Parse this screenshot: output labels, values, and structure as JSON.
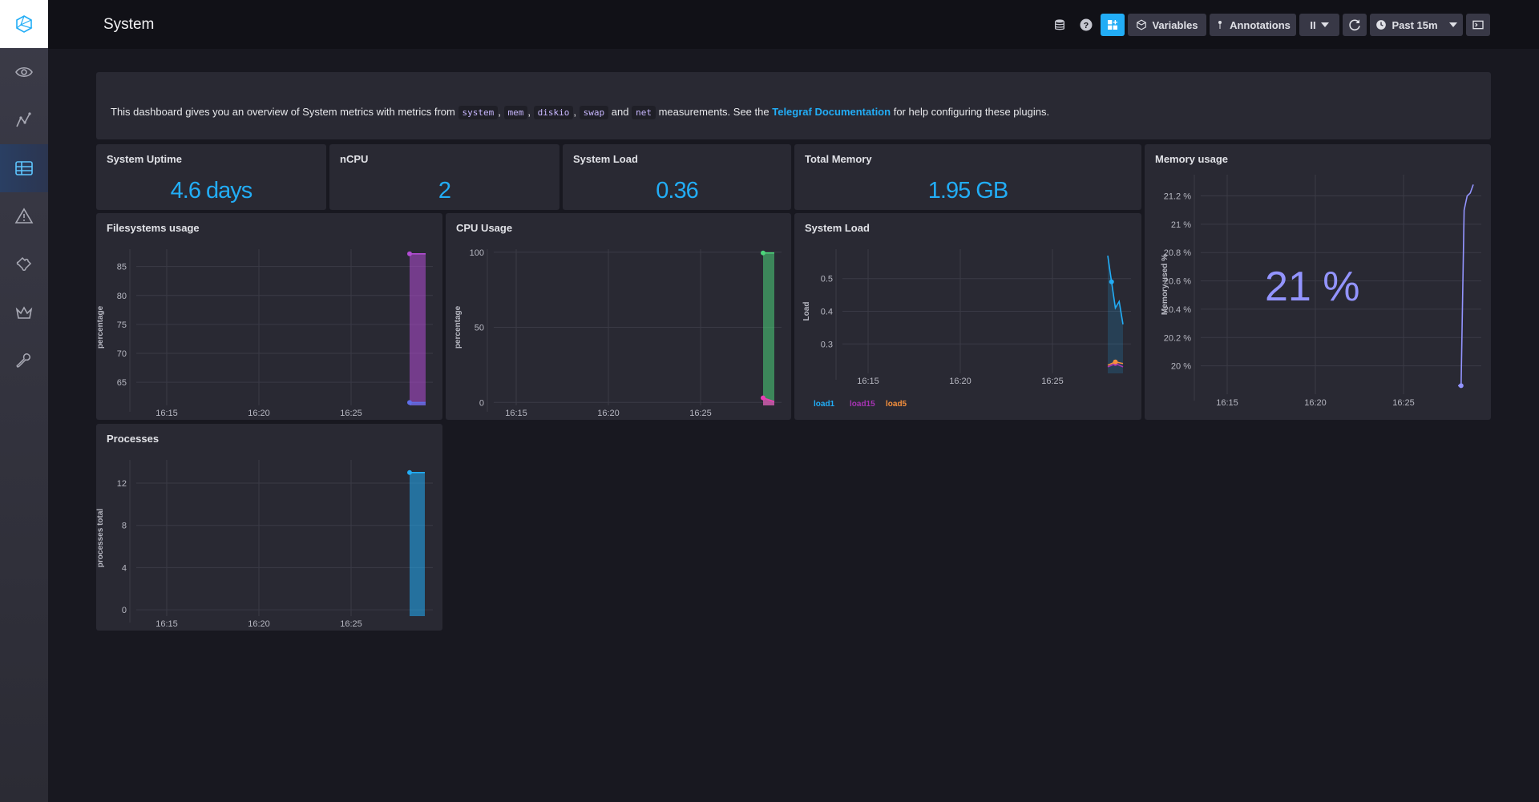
{
  "header": {
    "title": "System",
    "variables_label": "Variables",
    "annotations_label": "Annotations",
    "pause_label": "II",
    "time_range_label": "Past 15m"
  },
  "sidebar": {
    "items": [
      {
        "icon": "eye-icon"
      },
      {
        "icon": "graph-icon"
      },
      {
        "icon": "dashboards-icon",
        "active": true
      },
      {
        "icon": "alert-icon"
      },
      {
        "icon": "puzzle-icon"
      },
      {
        "icon": "crown-icon"
      },
      {
        "icon": "wrench-icon"
      }
    ]
  },
  "description": {
    "text_before": "This dashboard gives you an overview of System metrics with metrics from",
    "m1": "system",
    "sep1": ",",
    "m2": "mem",
    "sep2": ",",
    "m3": "diskio",
    "sep3": ",",
    "m4": "swap",
    "and": "and",
    "m5": "net",
    "text_mid": "measurements. See the",
    "link": "Telegraf Documentation",
    "text_after": "for help configuring these plugins."
  },
  "stats": {
    "uptime": {
      "title": "System Uptime",
      "value": "4.6 days"
    },
    "ncpu": {
      "title": "nCPU",
      "value": "2"
    },
    "load": {
      "title": "System Load",
      "value": "0.36"
    },
    "memory": {
      "title": "Total Memory",
      "value": "1.95 GB"
    }
  },
  "panels": {
    "filesystems": {
      "title": "Filesystems usage"
    },
    "cpu": {
      "title": "CPU Usage"
    },
    "sysload": {
      "title": "System Load"
    },
    "memusage": {
      "title": "Memory usage",
      "single_stat": "21 %"
    },
    "processes": {
      "title": "Processes"
    }
  },
  "colors": {
    "accent": "#22adf6",
    "load1": "#22adf6",
    "load15": "#a634b3",
    "load5": "#f58f3c",
    "memory_line": "#9394ff"
  },
  "chart_data": [
    {
      "id": "filesystems",
      "type": "area",
      "title": "Filesystems usage",
      "ylabel": "percentage",
      "x_ticks": [
        "16:15",
        "16:20",
        "16:25"
      ],
      "y_ticks": [
        85,
        80,
        75,
        70,
        65
      ],
      "series": [
        {
          "color": "#b24cd4",
          "values": [
            87.2,
            87.2
          ]
        },
        {
          "color": "#5f6ee8",
          "values": [
            61.5,
            61.5
          ]
        }
      ]
    },
    {
      "id": "cpu",
      "type": "area",
      "title": "CPU Usage",
      "ylabel": "percentage",
      "x_ticks": [
        "16:15",
        "16:20",
        "16:25"
      ],
      "y_ticks": [
        100,
        50,
        0
      ],
      "series": [
        {
          "color": "#4cd47a",
          "values": [
            99.5,
            99.5
          ]
        },
        {
          "color": "#e83fb5",
          "values": [
            3,
            0.5
          ]
        }
      ]
    },
    {
      "id": "sysload",
      "type": "line",
      "title": "System Load",
      "ylabel": "Load",
      "x_ticks": [
        "16:15",
        "16:20",
        "16:25"
      ],
      "y_ticks": [
        0.5,
        0.4,
        0.3
      ],
      "legend": [
        "load1",
        "load15",
        "load5"
      ],
      "series": [
        {
          "name": "load1",
          "color": "#22adf6",
          "values": [
            0.57,
            0.49,
            0.41,
            0.43,
            0.36
          ]
        },
        {
          "name": "load15",
          "color": "#a634b3",
          "values": [
            0.23,
            0.24,
            0.23
          ]
        },
        {
          "name": "load5",
          "color": "#f58f3c",
          "values": [
            0.235,
            0.245,
            0.24
          ]
        }
      ]
    },
    {
      "id": "memusage",
      "type": "line",
      "title": "Memory usage",
      "ylabel": "Memory used %",
      "x_ticks": [
        "16:15",
        "16:20",
        "16:25"
      ],
      "y_ticks": [
        "21.2 %",
        "21 %",
        "20.8 %",
        "20.6 %",
        "20.4 %",
        "20.2 %",
        "20 %"
      ],
      "series": [
        {
          "color": "#9394ff",
          "values": [
            19.86,
            19.86,
            21.1,
            21.2,
            21.22,
            21.28
          ]
        }
      ]
    },
    {
      "id": "processes",
      "type": "area",
      "title": "Processes",
      "ylabel": "processes total",
      "x_ticks": [
        "16:15",
        "16:20",
        "16:25"
      ],
      "y_ticks": [
        12,
        8,
        4,
        0
      ],
      "series": [
        {
          "color": "#22adf6",
          "values": [
            13,
            13
          ]
        }
      ]
    }
  ]
}
